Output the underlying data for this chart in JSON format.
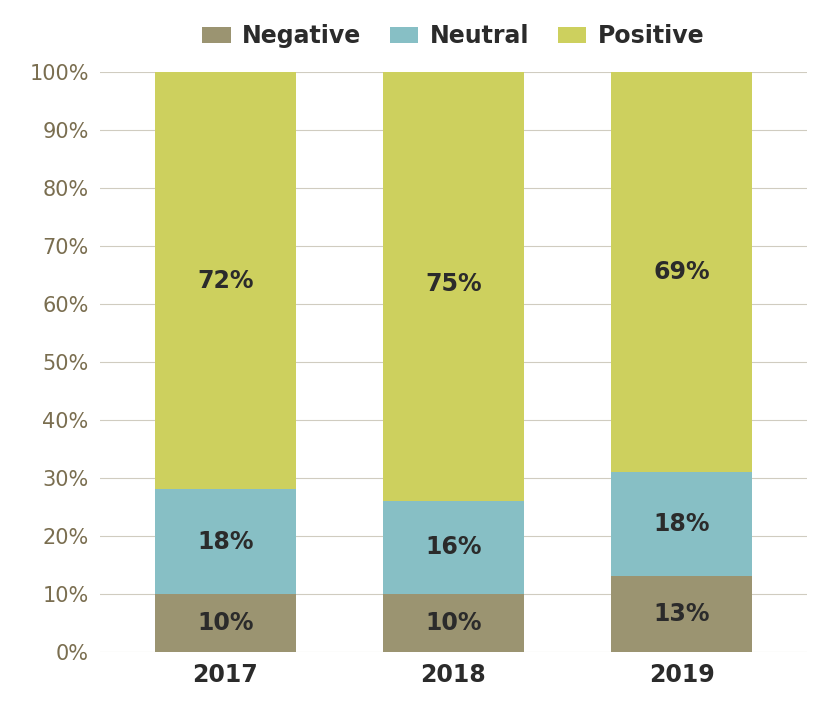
{
  "years": [
    "2017",
    "2018",
    "2019"
  ],
  "negative": [
    10,
    10,
    13
  ],
  "neutral": [
    18,
    16,
    18
  ],
  "positive": [
    72,
    75,
    69
  ],
  "negative_color": "#9b9471",
  "neutral_color": "#87bfc5",
  "positive_color": "#cdd05e",
  "background_color": "#ffffff",
  "label_color": "#2b2b2b",
  "ytick_color": "#7a6e50",
  "xtick_color": "#2b2b2b",
  "legend_labels": [
    "Negative",
    "Neutral",
    "Positive"
  ],
  "ylabel_ticks": [
    "0%",
    "10%",
    "20%",
    "30%",
    "40%",
    "50%",
    "60%",
    "70%",
    "80%",
    "90%",
    "100%"
  ],
  "label_fontsize": 17,
  "legend_fontsize": 17,
  "ytick_fontsize": 15,
  "xtick_fontsize": 17,
  "bar_width": 0.62,
  "grid_color": "#d0ccc0"
}
